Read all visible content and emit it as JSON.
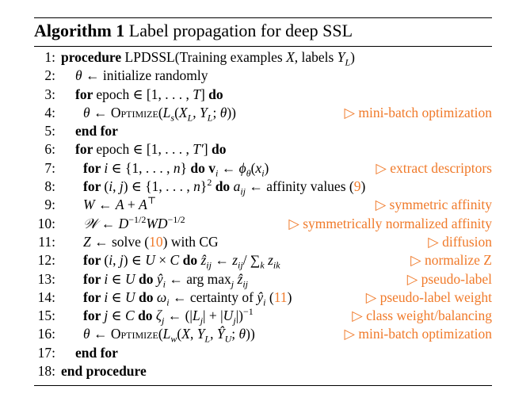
{
  "caption": {
    "label": "Algorithm 1",
    "title": "Label propagation for deep SSL"
  },
  "lines": [
    {
      "num": "1:",
      "segments": [
        [
          "kw",
          "procedure "
        ],
        [
          "sc",
          "LPDSSL"
        ],
        [
          "t",
          "(Training examples "
        ],
        [
          "m",
          "X"
        ],
        [
          "t",
          ", labels "
        ],
        [
          "m",
          "Y"
        ],
        [
          "sub",
          "L"
        ],
        [
          "t",
          ")"
        ]
      ],
      "comment": ""
    },
    {
      "num": "2:",
      "segments": [
        [
          "m",
          "θ"
        ],
        [
          "t",
          " ← initialize randomly"
        ]
      ],
      "comment": ""
    },
    {
      "num": "3:",
      "segments": [
        [
          "kw",
          "for "
        ],
        [
          "t",
          "epoch ∈ [1, . . . , "
        ],
        [
          "m",
          "T"
        ],
        [
          "t",
          "] "
        ],
        [
          "kw",
          "do"
        ]
      ],
      "comment": ""
    },
    {
      "num": "4:",
      "segments": [
        [
          "m",
          "θ"
        ],
        [
          "t",
          " ← "
        ],
        [
          "sc",
          "Optimize"
        ],
        [
          "t",
          "("
        ],
        [
          "m",
          "L"
        ],
        [
          "sub",
          "s"
        ],
        [
          "t",
          "("
        ],
        [
          "m",
          "X"
        ],
        [
          "sub",
          "L"
        ],
        [
          "t",
          ", "
        ],
        [
          "m",
          "Y"
        ],
        [
          "sub",
          "L"
        ],
        [
          "t",
          "; "
        ],
        [
          "m",
          "θ"
        ],
        [
          "t",
          "))"
        ]
      ],
      "comment": "▷ mini-batch optimization"
    },
    {
      "num": "5:",
      "segments": [
        [
          "kw",
          "end for"
        ]
      ],
      "comment": ""
    },
    {
      "num": "6:",
      "segments": [
        [
          "kw",
          "for "
        ],
        [
          "t",
          "epoch ∈ [1, . . . , "
        ],
        [
          "m",
          "T′"
        ],
        [
          "t",
          "] "
        ],
        [
          "kw",
          "do"
        ]
      ],
      "comment": ""
    },
    {
      "num": "7:",
      "segments": [
        [
          "kw",
          "for "
        ],
        [
          "m",
          "i"
        ],
        [
          "t",
          " ∈ {1, . . . , "
        ],
        [
          "m",
          "n"
        ],
        [
          "t",
          "} "
        ],
        [
          "kw",
          "do "
        ],
        [
          "kw",
          "v"
        ],
        [
          "sub",
          "i"
        ],
        [
          "t",
          " ← "
        ],
        [
          "m",
          "ϕ"
        ],
        [
          "sub",
          "θ"
        ],
        [
          "t",
          "("
        ],
        [
          "m",
          "x"
        ],
        [
          "sub",
          "i"
        ],
        [
          "t",
          ")"
        ]
      ],
      "comment": "▷ extract descriptors"
    },
    {
      "num": "8:",
      "segments": [
        [
          "kw",
          "for "
        ],
        [
          "t",
          "("
        ],
        [
          "m",
          "i"
        ],
        [
          "t",
          ", "
        ],
        [
          "m",
          "j"
        ],
        [
          "t",
          ") ∈ {1, . . . , "
        ],
        [
          "m",
          "n"
        ],
        [
          "t",
          "}"
        ],
        [
          "sup",
          "2"
        ],
        [
          "t",
          " "
        ],
        [
          "kw",
          "do "
        ],
        [
          "m",
          "a"
        ],
        [
          "sub",
          "ij"
        ],
        [
          "t",
          " ← affinity values ("
        ],
        [
          "up",
          "9"
        ],
        [
          "t",
          ")"
        ]
      ],
      "comment": ""
    },
    {
      "num": "9:",
      "segments": [
        [
          "m",
          "W"
        ],
        [
          "t",
          " ← "
        ],
        [
          "m",
          "A"
        ],
        [
          "t",
          " + "
        ],
        [
          "m",
          "A"
        ],
        [
          "sup",
          "⊤"
        ]
      ],
      "comment": "▷ symmetric affinity"
    },
    {
      "num": "10:",
      "segments": [
        [
          "m",
          "𝒲"
        ],
        [
          "t",
          " ← "
        ],
        [
          "m",
          "D"
        ],
        [
          "sup",
          "−1/2"
        ],
        [
          "m",
          "W"
        ],
        [
          "m",
          "D"
        ],
        [
          "sup",
          "−1/2"
        ]
      ],
      "comment": "▷ symmetrically normalized affinity"
    },
    {
      "num": "11:",
      "segments": [
        [
          "m",
          "Z"
        ],
        [
          "t",
          " ← solve ("
        ],
        [
          "up",
          "10"
        ],
        [
          "t",
          ") with CG"
        ]
      ],
      "comment": "▷ diffusion"
    },
    {
      "num": "12:",
      "segments": [
        [
          "kw",
          "for "
        ],
        [
          "t",
          "("
        ],
        [
          "m",
          "i"
        ],
        [
          "t",
          ", "
        ],
        [
          "m",
          "j"
        ],
        [
          "t",
          ") ∈ "
        ],
        [
          "m",
          "U"
        ],
        [
          "t",
          " × "
        ],
        [
          "m",
          "C"
        ],
        [
          "t",
          " "
        ],
        [
          "kw",
          "do "
        ],
        [
          "m",
          "ẑ"
        ],
        [
          "sub",
          "ij"
        ],
        [
          "t",
          " ← "
        ],
        [
          "m",
          "z"
        ],
        [
          "sub",
          "ij"
        ],
        [
          "t",
          "/ ∑"
        ],
        [
          "sub",
          "k"
        ],
        [
          "t",
          " "
        ],
        [
          "m",
          "z"
        ],
        [
          "sub",
          "ik"
        ]
      ],
      "comment": "▷ normalize Z"
    },
    {
      "num": "13:",
      "segments": [
        [
          "kw",
          "for "
        ],
        [
          "m",
          "i"
        ],
        [
          "t",
          " ∈ "
        ],
        [
          "m",
          "U"
        ],
        [
          "t",
          " "
        ],
        [
          "kw",
          "do "
        ],
        [
          "m",
          "ŷ"
        ],
        [
          "sub",
          "i"
        ],
        [
          "t",
          " ← arg max"
        ],
        [
          "sub",
          "j"
        ],
        [
          "t",
          " "
        ],
        [
          "m",
          "ẑ"
        ],
        [
          "sub",
          "ij"
        ]
      ],
      "comment": "▷ pseudo-label"
    },
    {
      "num": "14:",
      "segments": [
        [
          "kw",
          "for "
        ],
        [
          "m",
          "i"
        ],
        [
          "t",
          " ∈ "
        ],
        [
          "m",
          "U"
        ],
        [
          "t",
          " "
        ],
        [
          "kw",
          "do "
        ],
        [
          "m",
          "ω"
        ],
        [
          "sub",
          "i"
        ],
        [
          "t",
          " ← certainty of "
        ],
        [
          "m",
          "ŷ"
        ],
        [
          "sub",
          "i"
        ],
        [
          "t",
          " ("
        ],
        [
          "up",
          "11"
        ],
        [
          "t",
          ")"
        ]
      ],
      "comment": "▷ pseudo-label weight"
    },
    {
      "num": "15:",
      "segments": [
        [
          "kw",
          "for "
        ],
        [
          "m",
          "j"
        ],
        [
          "t",
          " ∈ "
        ],
        [
          "m",
          "C"
        ],
        [
          "t",
          " "
        ],
        [
          "kw",
          "do "
        ],
        [
          "m",
          "ζ"
        ],
        [
          "sub",
          "j"
        ],
        [
          "t",
          " ← (|"
        ],
        [
          "m",
          "L"
        ],
        [
          "sub",
          "j"
        ],
        [
          "t",
          "| + |"
        ],
        [
          "m",
          "U"
        ],
        [
          "sub",
          "j"
        ],
        [
          "t",
          "|)"
        ],
        [
          "sup",
          "−1"
        ]
      ],
      "comment": "▷ class weight/balancing"
    },
    {
      "num": "16:",
      "segments": [
        [
          "m",
          "θ"
        ],
        [
          "t",
          " ← "
        ],
        [
          "sc",
          "Optimize"
        ],
        [
          "t",
          "("
        ],
        [
          "m",
          "L"
        ],
        [
          "sub",
          "w"
        ],
        [
          "t",
          "("
        ],
        [
          "m",
          "X"
        ],
        [
          "t",
          ", "
        ],
        [
          "m",
          "Y"
        ],
        [
          "sub",
          "L"
        ],
        [
          "t",
          ", "
        ],
        [
          "m",
          "Ŷ"
        ],
        [
          "sub",
          "U"
        ],
        [
          "t",
          "; "
        ],
        [
          "m",
          "θ"
        ],
        [
          "t",
          "))"
        ]
      ],
      "comment": "▷ mini-batch optimization"
    },
    {
      "num": "17:",
      "segments": [
        [
          "kw",
          "end for"
        ]
      ],
      "comment": ""
    },
    {
      "num": "18:",
      "segments": [
        [
          "kw",
          "end procedure"
        ]
      ],
      "comment": ""
    }
  ]
}
